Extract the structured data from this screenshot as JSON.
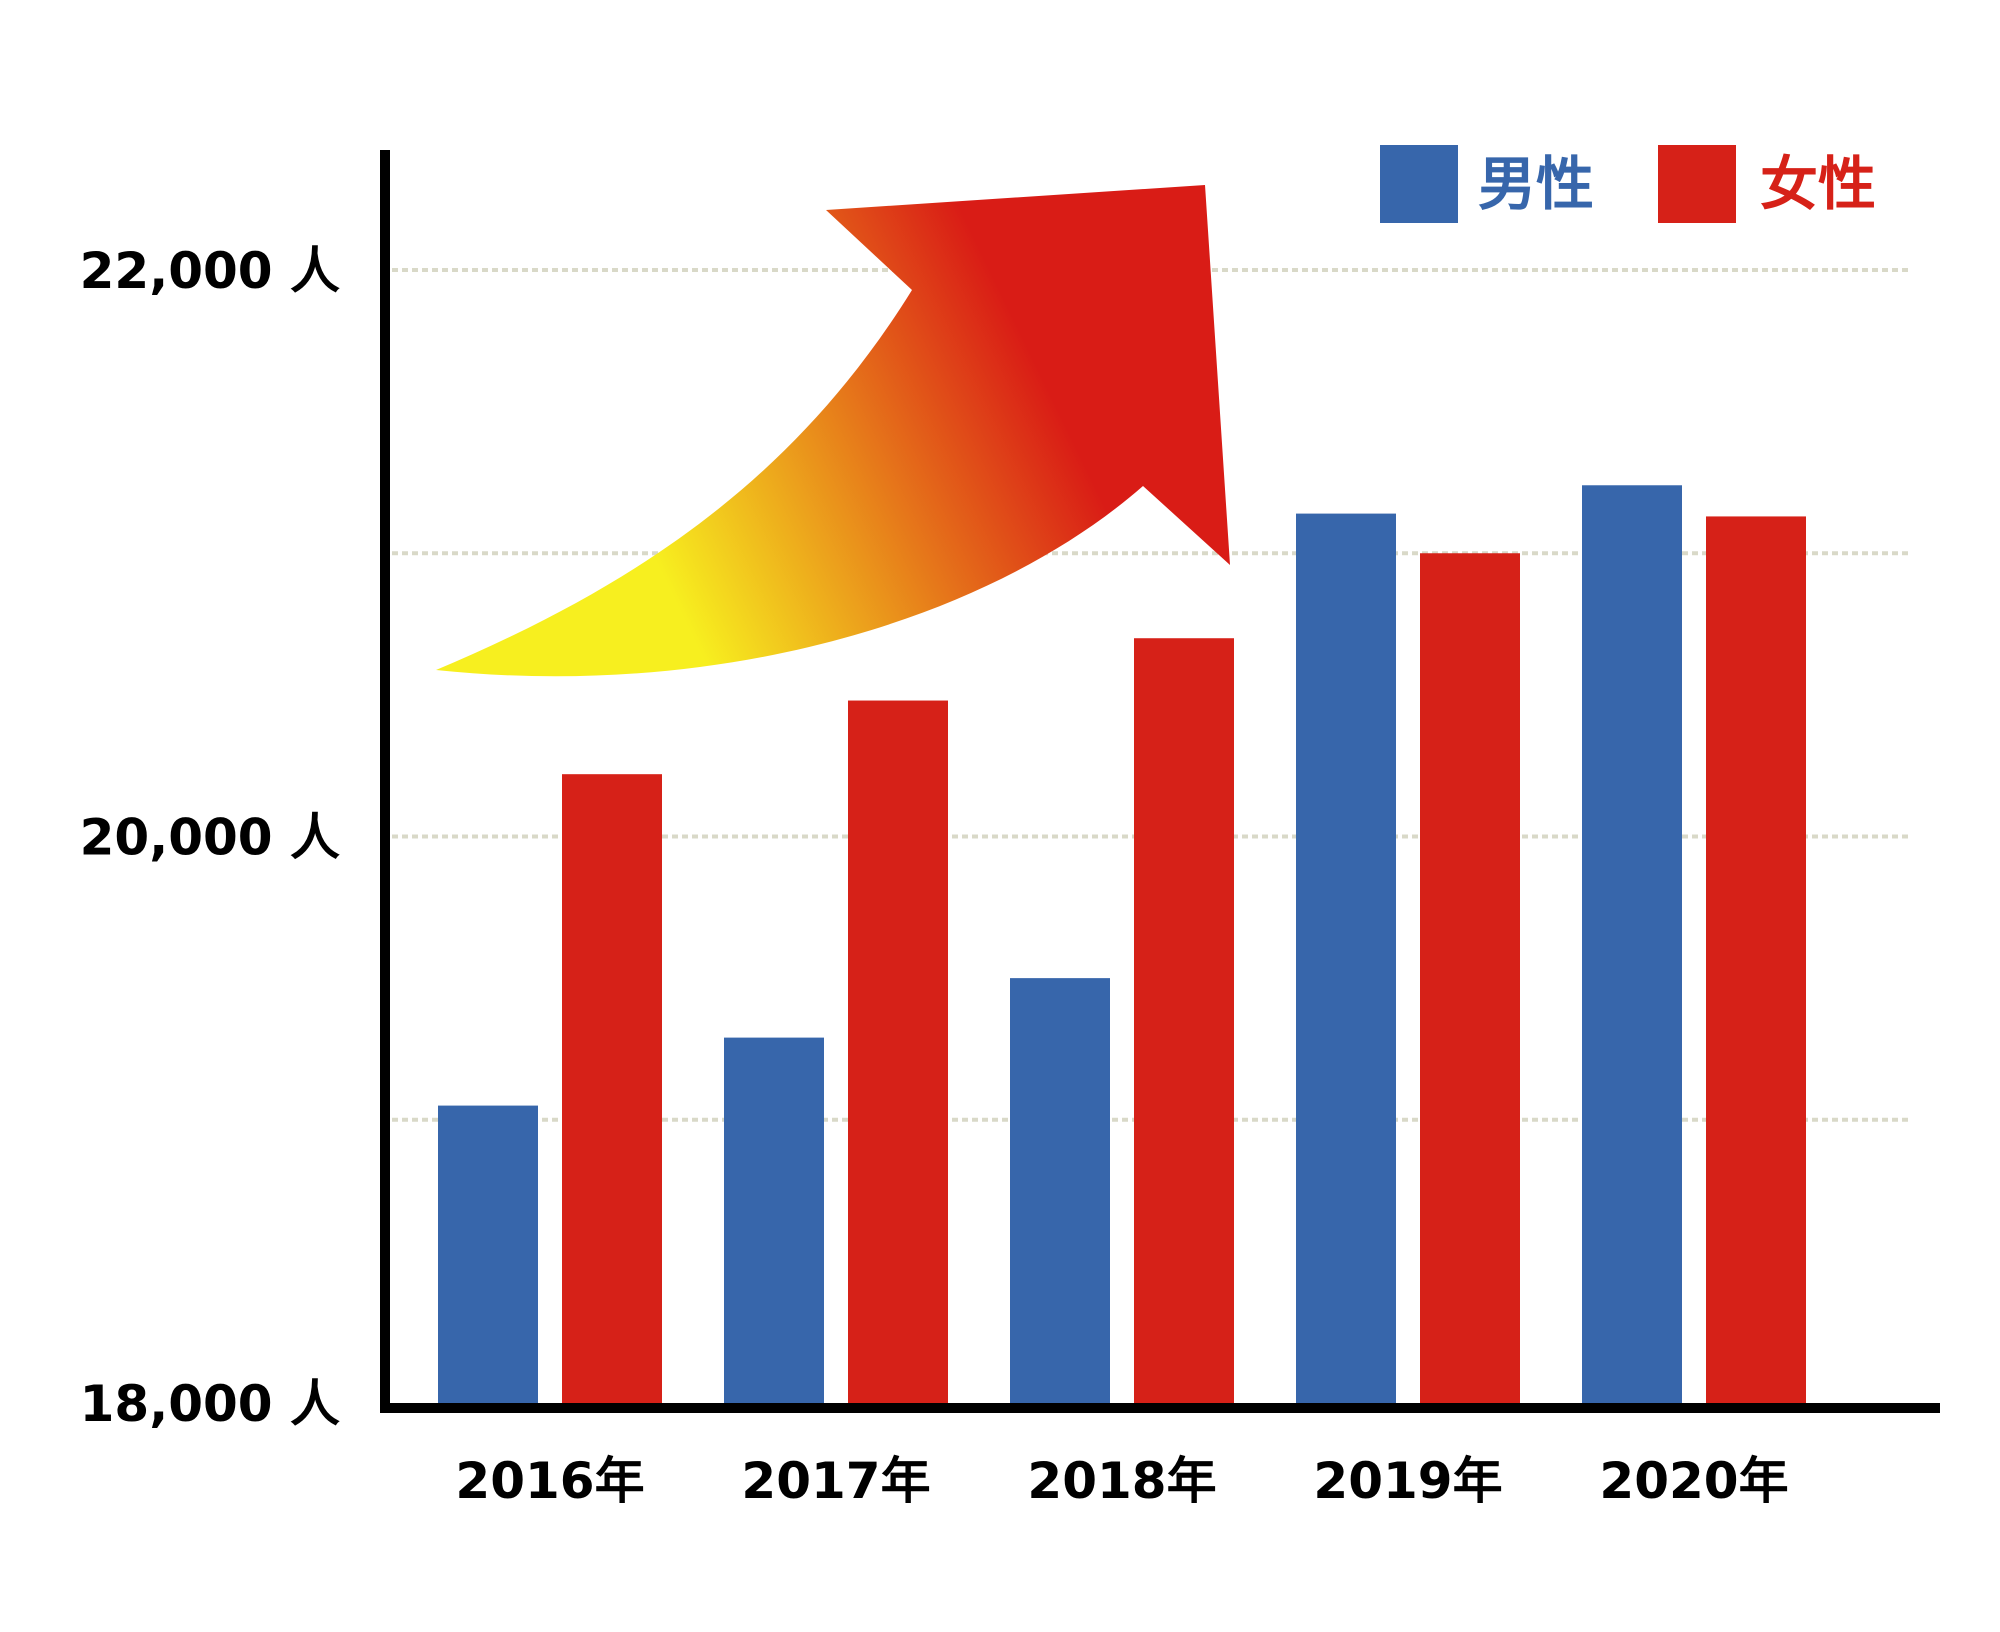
{
  "colors": {
    "male": "#3766ab",
    "female": "#d62118",
    "axis": "#000000",
    "grid": "#d9d9c8",
    "arrow_start": "#f7ef1f",
    "arrow_end": "#d91c16"
  },
  "legend": {
    "male_label": "男性",
    "female_label": "女性"
  },
  "chart_data": {
    "type": "bar",
    "categories": [
      "2016年",
      "2017年",
      "2018年",
      "2019年",
      "2020年"
    ],
    "series": [
      {
        "name": "男性",
        "values": [
          19050,
          19290,
          19500,
          21140,
          21240
        ]
      },
      {
        "name": "女性",
        "values": [
          20220,
          20480,
          20700,
          21000,
          21130
        ]
      }
    ],
    "yticks": [
      {
        "value": 18000,
        "label": "18,000 人"
      },
      {
        "value": 20000,
        "label": "20,000 人"
      },
      {
        "value": 22000,
        "label": "22,000 人"
      }
    ],
    "ylim": [
      18000,
      22000
    ],
    "grid_values": [
      19000,
      20000,
      21000,
      22000
    ],
    "grid": true,
    "legend_position": "top-right",
    "decoration": "upward-arrow"
  }
}
